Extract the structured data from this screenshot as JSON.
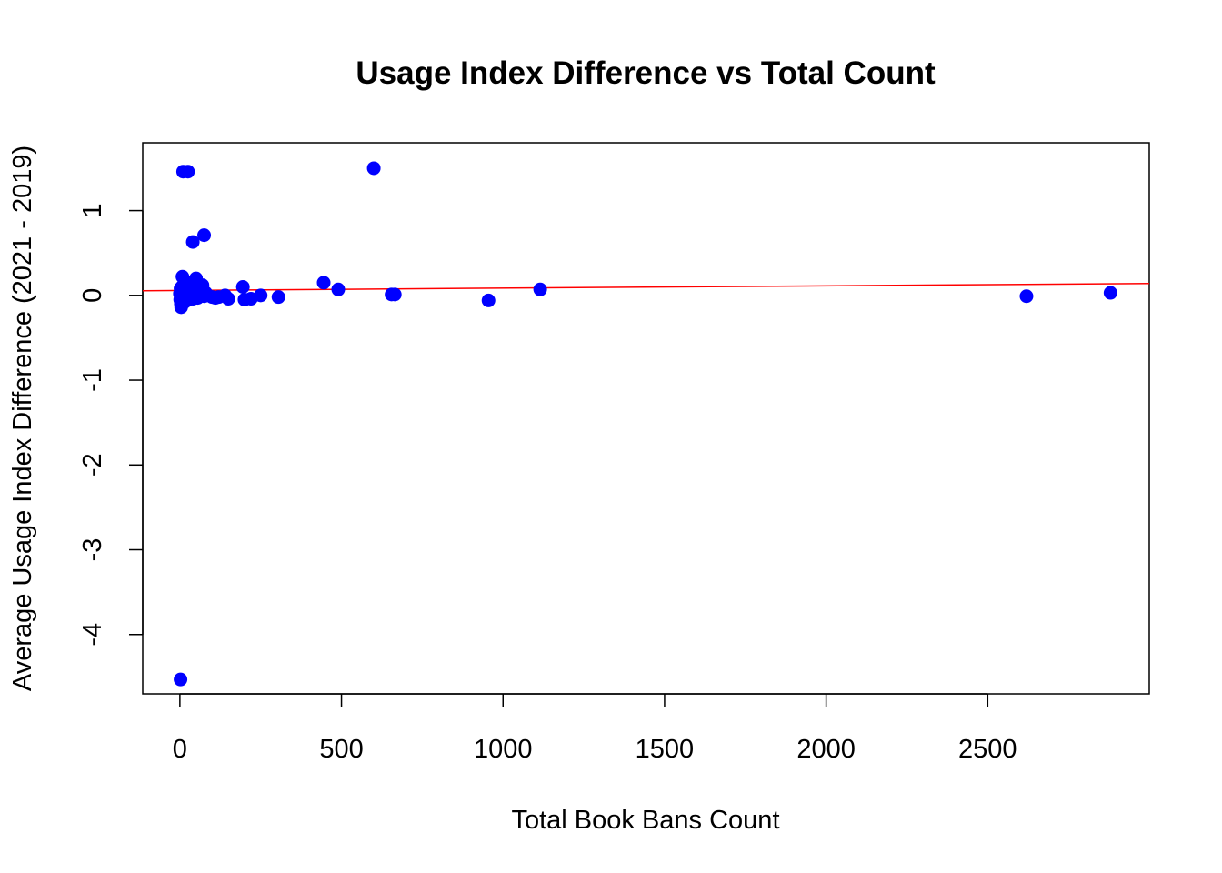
{
  "chart_data": {
    "type": "scatter",
    "title": "Usage Index Difference vs Total Count",
    "xlabel": "Total Book Bans Count",
    "ylabel": "Average Usage Index Difference (2021 - 2019)",
    "xlim": [
      -115,
      3000
    ],
    "ylim": [
      -4.7,
      1.8
    ],
    "xticks": [
      0,
      500,
      1000,
      1500,
      2000,
      2500
    ],
    "xtick_labels": [
      "0",
      "500",
      "1000",
      "1500",
      "2000",
      "2500"
    ],
    "yticks": [
      -4,
      -3,
      -2,
      -1,
      0,
      1
    ],
    "ytick_labels": [
      "-4",
      "-3",
      "-2",
      "-1",
      "0",
      "1"
    ],
    "grid": false,
    "legend": "none",
    "point_color": "#0000ff",
    "line_color": "#ff0000",
    "series": [
      {
        "kind": "points",
        "x": [
          0,
          1,
          2,
          3,
          4,
          5,
          6,
          8,
          10,
          12,
          14,
          16,
          18,
          20,
          22,
          25,
          28,
          30,
          32,
          35,
          38,
          40,
          45,
          50,
          55,
          60,
          65,
          70,
          75,
          80,
          85,
          100,
          110,
          120,
          140,
          150,
          195,
          200,
          220,
          250,
          305,
          445,
          490,
          600,
          10,
          25,
          40,
          75,
          655,
          665,
          955,
          1115,
          2620,
          2880,
          2
        ],
        "y": [
          0.02,
          -0.05,
          0.08,
          -0.1,
          -0.14,
          0.05,
          0.1,
          0.22,
          -0.03,
          0.04,
          -0.08,
          0.12,
          0.0,
          0.06,
          -0.06,
          0.03,
          0.15,
          -0.02,
          0.08,
          0.02,
          0.1,
          -0.04,
          0.05,
          0.2,
          -0.03,
          0.07,
          0.0,
          0.12,
          -0.01,
          0.03,
          0.0,
          -0.02,
          -0.03,
          -0.02,
          0.0,
          -0.04,
          0.1,
          -0.05,
          -0.04,
          0.0,
          -0.02,
          0.15,
          0.07,
          1.5,
          1.46,
          1.46,
          0.63,
          0.71,
          0.01,
          0.01,
          -0.06,
          0.07,
          -0.01,
          0.03,
          -4.53
        ]
      },
      {
        "kind": "regression-line",
        "x": [
          -115,
          3000
        ],
        "y": [
          0.055,
          0.14
        ]
      }
    ]
  }
}
